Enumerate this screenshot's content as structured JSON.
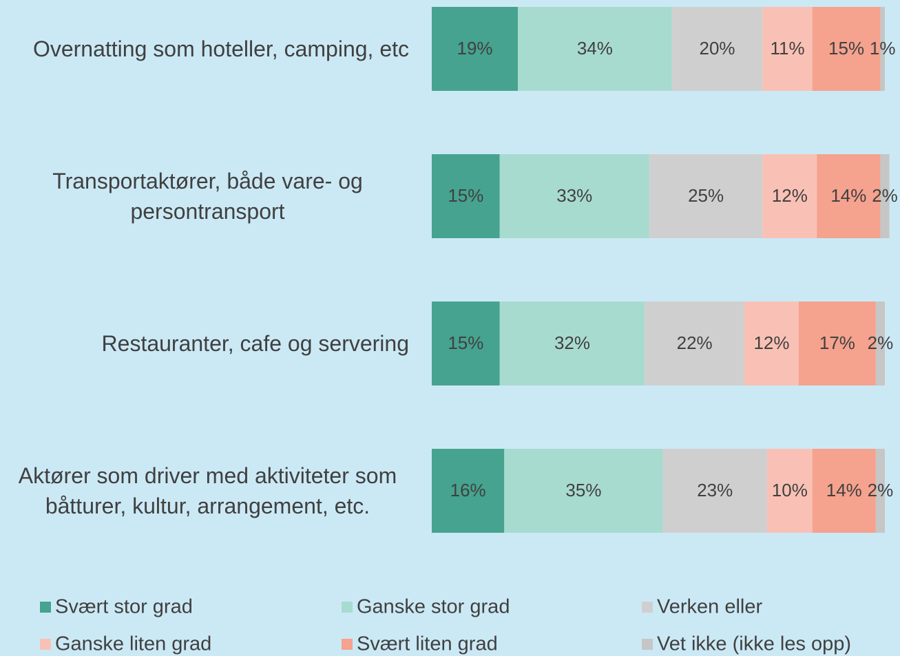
{
  "chart_data": {
    "type": "stacked-bar-horizontal",
    "categories": [
      "Overnatting som hoteller, camping, etc",
      "Transportaktører, både vare- og persontransport",
      "Restauranter, cafe og servering",
      "Aktører som driver med aktiviteter som båtturer, kultur, arrangement, etc."
    ],
    "series": [
      {
        "name": "Svært stor grad",
        "color": "#45a38f",
        "values": [
          19,
          15,
          15,
          16
        ],
        "value_labels": [
          "19%",
          "15%",
          "15%",
          "16%"
        ]
      },
      {
        "name": "Ganske stor grad",
        "color": "#a8dbd0",
        "values": [
          34,
          33,
          32,
          35
        ],
        "value_labels": [
          "34%",
          "33%",
          "32%",
          "35%"
        ]
      },
      {
        "name": "Verken eller",
        "color": "#d0cfd0",
        "values": [
          20,
          25,
          22,
          23
        ],
        "value_labels": [
          "20%",
          "25%",
          "22%",
          "23%"
        ]
      },
      {
        "name": "Ganske liten grad",
        "color": "#f9c1b5",
        "values": [
          11,
          12,
          12,
          10
        ],
        "value_labels": [
          "11%",
          "12%",
          "12%",
          "10%"
        ]
      },
      {
        "name": "Svært liten grad",
        "color": "#f5a28e",
        "values": [
          15,
          14,
          17,
          14
        ],
        "value_labels": [
          "15%",
          "14%",
          "17%",
          "14%"
        ]
      },
      {
        "name": "Vet ikke (ikke les opp)",
        "color": "#c6c6c6",
        "values": [
          1,
          2,
          2,
          2
        ],
        "value_labels": [
          "1%",
          "2%",
          "2%",
          "2%"
        ]
      }
    ],
    "legend": "bottom"
  }
}
